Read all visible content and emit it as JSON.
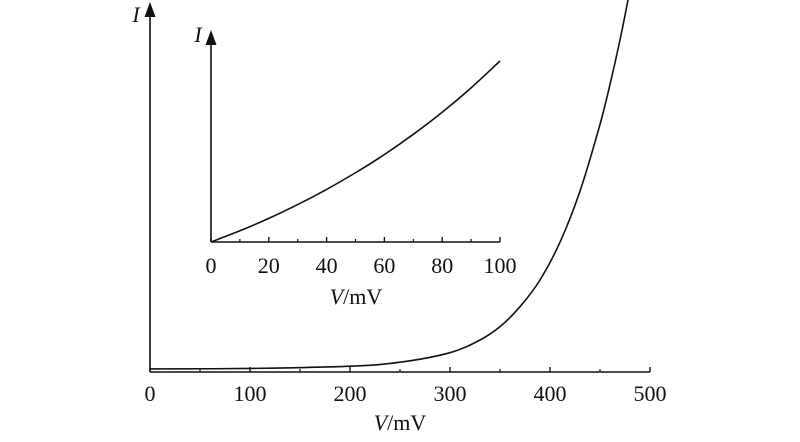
{
  "chart_data": [
    {
      "type": "line",
      "title": "",
      "xlabel": {
        "var": "V",
        "unit": "/mV"
      },
      "ylabel": "I",
      "xlim": [
        0,
        500
      ],
      "x_ticks": [
        0,
        100,
        200,
        300,
        400,
        500
      ],
      "x_ticks_minor": [
        50,
        150,
        250,
        350,
        450
      ],
      "grid": false,
      "series": [
        {
          "x": [
            0,
            100,
            200,
            250,
            300,
            330,
            350,
            370,
            390,
            410,
            430,
            450,
            460,
            470,
            478
          ],
          "y": [
            0,
            0.002,
            0.012,
            0.03,
            0.073,
            0.13,
            0.19,
            0.28,
            0.4,
            0.57,
            0.8,
            1.1,
            1.28,
            1.48,
            1.66
          ]
        }
      ],
      "color": "#111111"
    },
    {
      "type": "line",
      "title": "",
      "xlabel": {
        "var": "V",
        "unit": "/mV"
      },
      "ylabel": "I",
      "xlim": [
        0,
        100
      ],
      "x_ticks": [
        0,
        20,
        40,
        60,
        80,
        100
      ],
      "x_ticks_minor": [
        10,
        30,
        50,
        70,
        90
      ],
      "grid": false,
      "series": [
        {
          "x": [
            0,
            10,
            20,
            30,
            40,
            50,
            60,
            70,
            80,
            90,
            100
          ],
          "y": [
            0,
            0.091,
            0.192,
            0.304,
            0.427,
            0.562,
            0.71,
            0.874,
            1.053,
            1.251,
            1.469
          ]
        }
      ],
      "color": "#111111"
    }
  ]
}
